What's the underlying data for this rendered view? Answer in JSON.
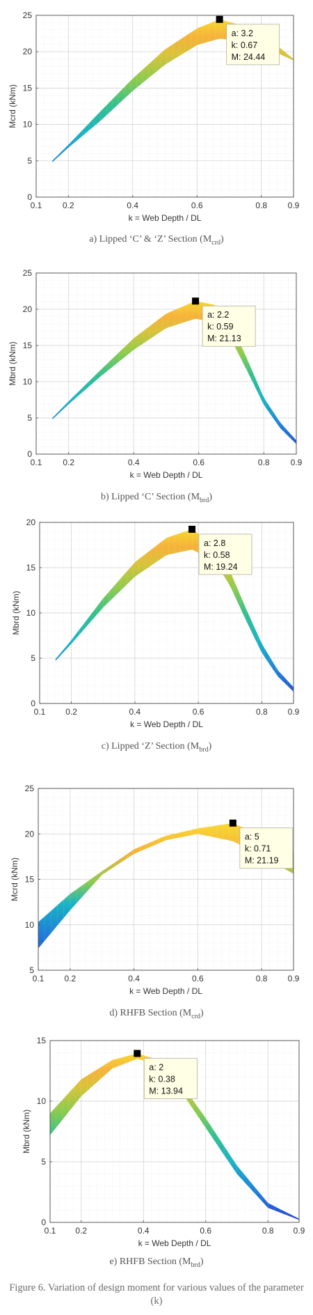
{
  "figure_caption": "Figure 6. Variation of design moment for various values of the parameter (k)",
  "palette": [
    "#2a3fd0",
    "#1f7fd8",
    "#19b4c4",
    "#35c08c",
    "#8ccb4e",
    "#d8c33a",
    "#f6b23a",
    "#f8d830"
  ],
  "chart_data": [
    {
      "type": "area",
      "caption": "a) Lipped ‘C’ & ‘Z’ Section (M",
      "caption_sub": "crd",
      "caption_tail": ")",
      "xlabel": "k = Web Depth / DL",
      "ylabel": "Mcrd (kNm)",
      "xlim": [
        0.1,
        0.9
      ],
      "ylim": [
        0,
        25
      ],
      "xticks": [
        "0.1",
        "0.2",
        "0.4",
        "0.6",
        "0.8",
        "0.9"
      ],
      "yticks": [
        "0",
        "5",
        "10",
        "15",
        "20",
        "25"
      ],
      "grid": true,
      "upper": [
        [
          0.15,
          5.0
        ],
        [
          0.2,
          7.2
        ],
        [
          0.3,
          11.8
        ],
        [
          0.4,
          16.3
        ],
        [
          0.5,
          20.3
        ],
        [
          0.6,
          23.2
        ],
        [
          0.67,
          24.44
        ],
        [
          0.75,
          23.5
        ],
        [
          0.85,
          20.8
        ],
        [
          0.9,
          19.0
        ]
      ],
      "lower": [
        [
          0.15,
          4.8
        ],
        [
          0.2,
          6.8
        ],
        [
          0.3,
          10.5
        ],
        [
          0.4,
          14.6
        ],
        [
          0.5,
          18.2
        ],
        [
          0.6,
          20.9
        ],
        [
          0.67,
          21.8
        ],
        [
          0.75,
          21.4
        ],
        [
          0.85,
          19.8
        ],
        [
          0.9,
          18.8
        ]
      ],
      "marker": {
        "x": 0.67,
        "y": 24.44
      },
      "tooltip": {
        "a": "3.2",
        "k": "0.67",
        "M": "24.44"
      }
    },
    {
      "type": "area",
      "caption": "b) Lipped ‘C’ Section (M",
      "caption_sub": "brd",
      "caption_tail": ")",
      "xlabel": "k = Web Depth / DL",
      "ylabel": "Mbrd (kNm)",
      "xlim": [
        0.1,
        0.9
      ],
      "ylim": [
        0,
        25
      ],
      "xticks": [
        "0.1",
        "0.2",
        "0.4",
        "0.6",
        "0.8",
        "0.9"
      ],
      "yticks": [
        "0",
        "5",
        "10",
        "15",
        "20",
        "25"
      ],
      "grid": true,
      "upper": [
        [
          0.15,
          5.0
        ],
        [
          0.2,
          7.3
        ],
        [
          0.3,
          11.7
        ],
        [
          0.4,
          16.0
        ],
        [
          0.5,
          19.4
        ],
        [
          0.59,
          21.13
        ],
        [
          0.65,
          20.6
        ],
        [
          0.7,
          18.0
        ],
        [
          0.75,
          13.0
        ],
        [
          0.8,
          7.8
        ],
        [
          0.85,
          4.4
        ],
        [
          0.9,
          1.9
        ]
      ],
      "lower": [
        [
          0.15,
          4.8
        ],
        [
          0.2,
          6.9
        ],
        [
          0.3,
          10.8
        ],
        [
          0.4,
          14.4
        ],
        [
          0.5,
          17.4
        ],
        [
          0.59,
          18.7
        ],
        [
          0.65,
          18.2
        ],
        [
          0.7,
          15.8
        ],
        [
          0.75,
          11.4
        ],
        [
          0.8,
          6.8
        ],
        [
          0.85,
          3.6
        ],
        [
          0.9,
          1.4
        ]
      ],
      "marker": {
        "x": 0.59,
        "y": 21.13
      },
      "tooltip": {
        "a": "2.2",
        "k": "0.59",
        "M": "21.13"
      }
    },
    {
      "type": "area",
      "caption": "c) Lipped ‘Z’ Section (M",
      "caption_sub": "brd",
      "caption_tail": ")",
      "xlabel": "k = Web Depth / DL",
      "ylabel": "Mbrd (kNm)",
      "xlim": [
        0.1,
        0.9
      ],
      "ylim": [
        0,
        20
      ],
      "xticks": [
        "0.1",
        "0.2",
        "0.4",
        "0.6",
        "0.8",
        "0.9"
      ],
      "yticks": [
        "0",
        "5",
        "10",
        "15",
        "20"
      ],
      "grid": true,
      "upper": [
        [
          0.15,
          4.9
        ],
        [
          0.2,
          7.0
        ],
        [
          0.3,
          11.6
        ],
        [
          0.4,
          15.6
        ],
        [
          0.5,
          18.3
        ],
        [
          0.58,
          19.24
        ],
        [
          0.65,
          17.6
        ],
        [
          0.7,
          14.6
        ],
        [
          0.75,
          10.5
        ],
        [
          0.8,
          6.6
        ],
        [
          0.85,
          3.7
        ],
        [
          0.9,
          1.8
        ]
      ],
      "lower": [
        [
          0.15,
          4.7
        ],
        [
          0.2,
          6.6
        ],
        [
          0.3,
          10.6
        ],
        [
          0.4,
          14.0
        ],
        [
          0.5,
          16.4
        ],
        [
          0.58,
          17.0
        ],
        [
          0.65,
          15.8
        ],
        [
          0.7,
          13.0
        ],
        [
          0.75,
          9.2
        ],
        [
          0.8,
          5.6
        ],
        [
          0.85,
          3.0
        ],
        [
          0.9,
          1.3
        ]
      ],
      "marker": {
        "x": 0.58,
        "y": 19.24
      },
      "tooltip": {
        "a": "2.8",
        "k": "0.58",
        "M": "19.24"
      }
    },
    {
      "type": "area",
      "caption": "d) RHFB Section (M",
      "caption_sub": "crd",
      "caption_tail": ")",
      "xlabel": "k = Web Depth / DL",
      "ylabel": "Mcrd (kNm)",
      "xlim": [
        0.1,
        0.9
      ],
      "ylim": [
        5,
        25
      ],
      "xticks": [
        "0.1",
        "0.2",
        "0.4",
        "0.6",
        "0.8",
        "0.9"
      ],
      "yticks": [
        "5",
        "10",
        "15",
        "20",
        "25"
      ],
      "grid": true,
      "upper": [
        [
          0.1,
          10.3
        ],
        [
          0.2,
          13.4
        ],
        [
          0.3,
          15.9
        ],
        [
          0.4,
          18.3
        ],
        [
          0.5,
          19.8
        ],
        [
          0.6,
          20.6
        ],
        [
          0.71,
          21.19
        ],
        [
          0.8,
          19.8
        ],
        [
          0.9,
          18.0
        ]
      ],
      "lower": [
        [
          0.1,
          7.4
        ],
        [
          0.2,
          11.6
        ],
        [
          0.3,
          15.5
        ],
        [
          0.4,
          17.8
        ],
        [
          0.5,
          19.3
        ],
        [
          0.6,
          20.0
        ],
        [
          0.71,
          19.2
        ],
        [
          0.8,
          17.6
        ],
        [
          0.9,
          15.6
        ]
      ],
      "marker": {
        "x": 0.71,
        "y": 21.19
      },
      "tooltip": {
        "a": "5",
        "k": "0.71",
        "M": "21.19"
      }
    },
    {
      "type": "area",
      "caption": "e) RHFB Section (M",
      "caption_sub": "brd",
      "caption_tail": ")",
      "xlabel": "k = Web Depth / DL",
      "ylabel": "Mbrd (kNm)",
      "xlim": [
        0.1,
        0.9
      ],
      "ylim": [
        0,
        15
      ],
      "xticks": [
        "0.1",
        "0.2",
        "0.4",
        "0.6",
        "0.8",
        "0.9"
      ],
      "yticks": [
        "0",
        "5",
        "10",
        "15"
      ],
      "grid": true,
      "upper": [
        [
          0.1,
          9.0
        ],
        [
          0.2,
          11.8
        ],
        [
          0.3,
          13.4
        ],
        [
          0.38,
          13.94
        ],
        [
          0.45,
          13.4
        ],
        [
          0.5,
          12.2
        ],
        [
          0.6,
          8.6
        ],
        [
          0.7,
          4.7
        ],
        [
          0.8,
          1.6
        ],
        [
          0.9,
          0.3
        ]
      ],
      "lower": [
        [
          0.1,
          7.2
        ],
        [
          0.2,
          10.4
        ],
        [
          0.3,
          12.7
        ],
        [
          0.38,
          13.5
        ],
        [
          0.45,
          13.0
        ],
        [
          0.5,
          11.6
        ],
        [
          0.6,
          7.8
        ],
        [
          0.7,
          4.0
        ],
        [
          0.8,
          1.2
        ],
        [
          0.9,
          0.2
        ]
      ],
      "marker": {
        "x": 0.38,
        "y": 13.94
      },
      "tooltip": {
        "a": "2",
        "k": "0.38",
        "M": "13.94"
      }
    }
  ]
}
